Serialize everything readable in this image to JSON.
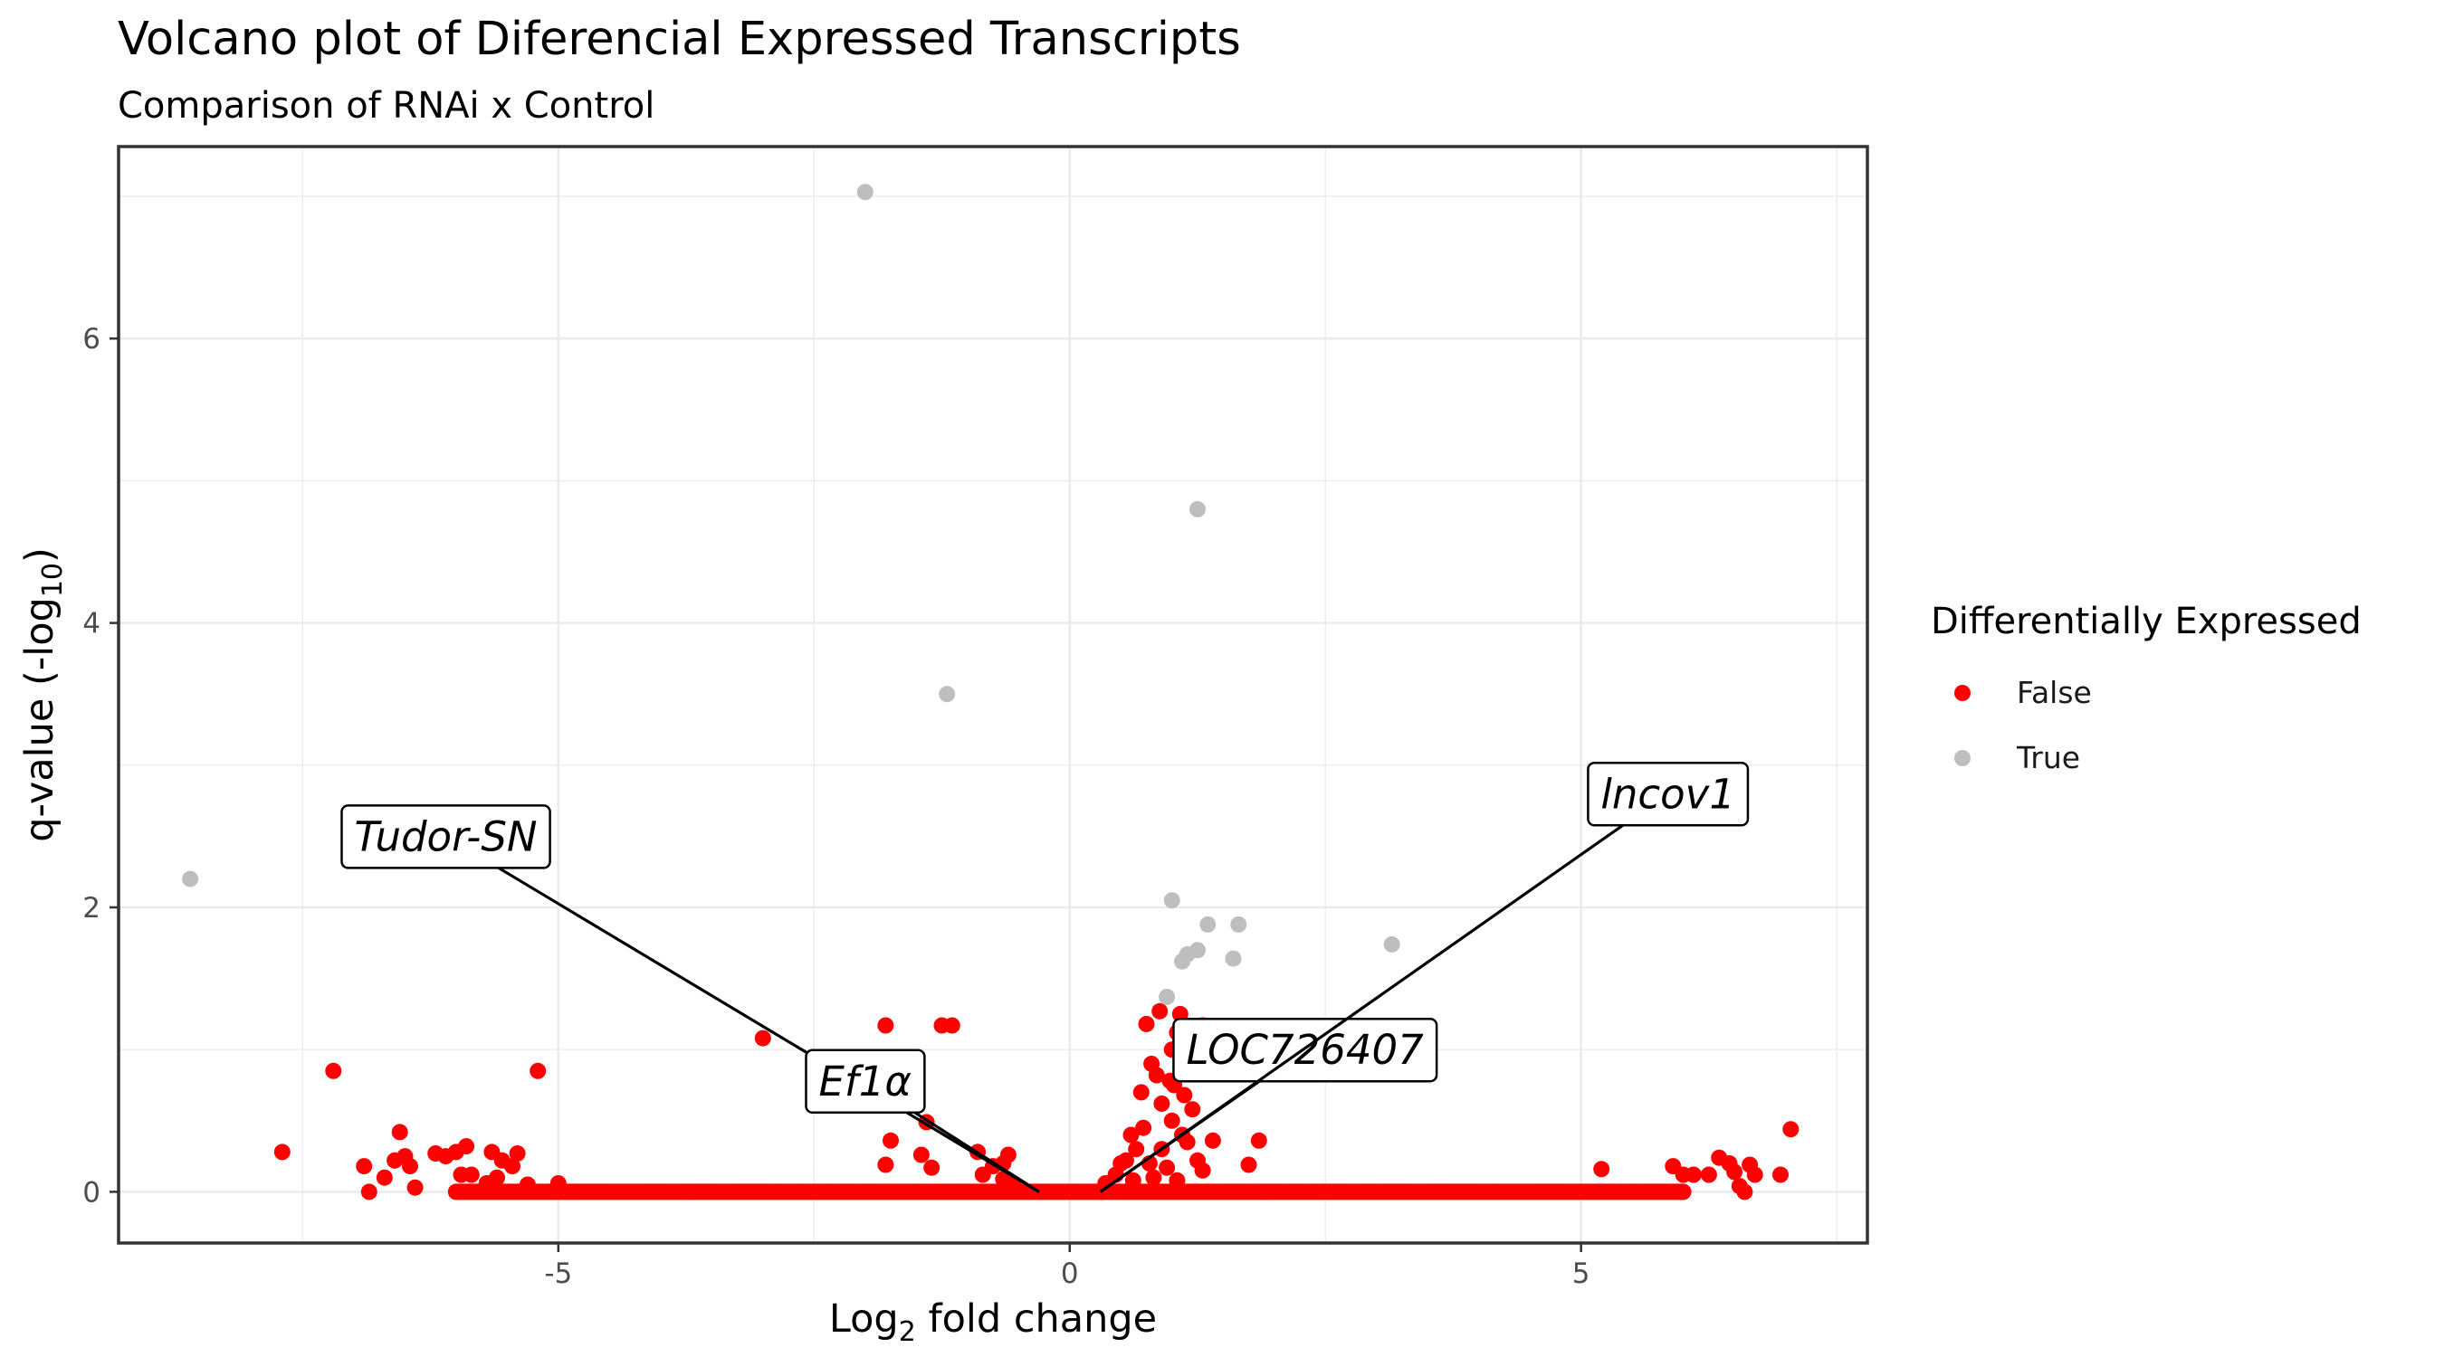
{
  "chart_data": {
    "type": "scatter",
    "title": "Volcano plot of Diferencial Expressed Transcripts",
    "subtitle": "Comparison of RNAi x Control",
    "xlabel": {
      "main": "Log",
      "sub": "2",
      "rest": " fold change"
    },
    "ylabel": {
      "main": "q-value (-log",
      "sub": "10",
      "rest": ")"
    },
    "xlim": [
      -9.3,
      7.8
    ],
    "ylim": [
      -0.36,
      7.35
    ],
    "x_ticks": [
      -5,
      0,
      5
    ],
    "y_ticks": [
      0,
      2,
      4,
      6
    ],
    "grid": true,
    "legend": {
      "title": "Differentially Expressed",
      "position": "right",
      "entries": [
        {
          "label": "False",
          "color": "#ff0000"
        },
        {
          "label": "True",
          "color": "#bebebe"
        }
      ]
    },
    "series": [
      {
        "name": "False",
        "color": "#ff0000",
        "points": [
          [
            -7.7,
            0.28
          ],
          [
            -7.2,
            0.85
          ],
          [
            -6.9,
            0.18
          ],
          [
            -6.85,
            0.0
          ],
          [
            -6.7,
            0.1
          ],
          [
            -6.6,
            0.22
          ],
          [
            -6.55,
            0.42
          ],
          [
            -6.5,
            0.25
          ],
          [
            -6.45,
            0.18
          ],
          [
            -6.4,
            0.03
          ],
          [
            -6.2,
            0.27
          ],
          [
            -6.1,
            0.25
          ],
          [
            -6.0,
            0.28
          ],
          [
            -5.95,
            0.12
          ],
          [
            -5.9,
            0.32
          ],
          [
            -5.85,
            0.12
          ],
          [
            -5.7,
            0.06
          ],
          [
            -5.65,
            0.28
          ],
          [
            -5.6,
            0.1
          ],
          [
            -5.55,
            0.22
          ],
          [
            -5.45,
            0.18
          ],
          [
            -5.4,
            0.27
          ],
          [
            -5.3,
            0.05
          ],
          [
            -5.2,
            0.85
          ],
          [
            -5.0,
            0.06
          ],
          [
            -3.0,
            1.08
          ],
          [
            -1.8,
            1.17
          ],
          [
            -1.75,
            0.36
          ],
          [
            -1.8,
            0.19
          ],
          [
            -1.45,
            0.26
          ],
          [
            -1.4,
            0.49
          ],
          [
            -1.35,
            0.17
          ],
          [
            -1.25,
            1.17
          ],
          [
            -1.15,
            1.17
          ],
          [
            -0.9,
            0.28
          ],
          [
            -0.85,
            0.12
          ],
          [
            -0.75,
            0.18
          ],
          [
            -0.65,
            0.2
          ],
          [
            -0.65,
            0.09
          ],
          [
            -0.6,
            0.26
          ],
          [
            -0.55,
            0.05
          ],
          [
            0.35,
            0.06
          ],
          [
            0.45,
            0.12
          ],
          [
            0.5,
            0.2
          ],
          [
            0.55,
            0.22
          ],
          [
            0.6,
            0.4
          ],
          [
            0.62,
            0.08
          ],
          [
            0.65,
            0.3
          ],
          [
            0.7,
            0.7
          ],
          [
            0.72,
            0.45
          ],
          [
            0.75,
            1.18
          ],
          [
            0.78,
            0.2
          ],
          [
            0.8,
            0.9
          ],
          [
            0.82,
            0.1
          ],
          [
            0.85,
            0.82
          ],
          [
            0.88,
            1.27
          ],
          [
            0.9,
            0.62
          ],
          [
            0.9,
            0.3
          ],
          [
            0.95,
            0.17
          ],
          [
            0.98,
            0.78
          ],
          [
            1.0,
            0.5
          ],
          [
            1.0,
            1.0
          ],
          [
            1.02,
            0.75
          ],
          [
            1.05,
            0.08
          ],
          [
            1.05,
            1.12
          ],
          [
            1.08,
            1.25
          ],
          [
            1.1,
            0.4
          ],
          [
            1.12,
            0.68
          ],
          [
            1.15,
            0.35
          ],
          [
            1.2,
            0.58
          ],
          [
            1.25,
            0.22
          ],
          [
            1.3,
            1.17
          ],
          [
            1.3,
            0.15
          ],
          [
            1.4,
            0.36
          ],
          [
            1.75,
            0.19
          ],
          [
            1.85,
            0.36
          ],
          [
            5.2,
            0.16
          ],
          [
            5.9,
            0.18
          ],
          [
            6.0,
            0.12
          ],
          [
            6.1,
            0.12
          ],
          [
            6.25,
            0.12
          ],
          [
            6.35,
            0.24
          ],
          [
            6.45,
            0.2
          ],
          [
            6.5,
            0.14
          ],
          [
            6.55,
            0.04
          ],
          [
            6.6,
            0.0
          ],
          [
            6.65,
            0.19
          ],
          [
            6.7,
            0.12
          ],
          [
            6.95,
            0.12
          ],
          [
            7.05,
            0.44
          ]
        ]
      },
      {
        "name": "True",
        "color": "#bebebe",
        "points": [
          [
            -8.6,
            2.2
          ],
          [
            -2.0,
            7.03
          ],
          [
            -1.2,
            3.5
          ],
          [
            0.95,
            1.37
          ],
          [
            1.0,
            2.05
          ],
          [
            1.1,
            1.62
          ],
          [
            1.15,
            1.67
          ],
          [
            1.25,
            1.7
          ],
          [
            1.25,
            4.8
          ],
          [
            1.35,
            1.88
          ],
          [
            1.6,
            1.64
          ],
          [
            1.65,
            1.88
          ],
          [
            3.15,
            1.74
          ]
        ]
      }
    ],
    "baseline_band": {
      "series": "False",
      "y": 0,
      "x_range": [
        -6.0,
        6.0
      ]
    },
    "annotations": [
      {
        "label": "Tudor-SN",
        "x": -6.1,
        "y": 2.5,
        "point": [
          -0.3,
          0.0
        ]
      },
      {
        "label": "Ef1α",
        "x": -2.0,
        "y": 0.78,
        "point": [
          -0.3,
          0.0
        ]
      },
      {
        "label": "LOC726407",
        "x": 2.3,
        "y": 1.0,
        "point": [
          0.3,
          0.0
        ]
      },
      {
        "label": "lncov1",
        "x": 5.85,
        "y": 2.8,
        "point": [
          0.3,
          0.0
        ]
      }
    ]
  }
}
